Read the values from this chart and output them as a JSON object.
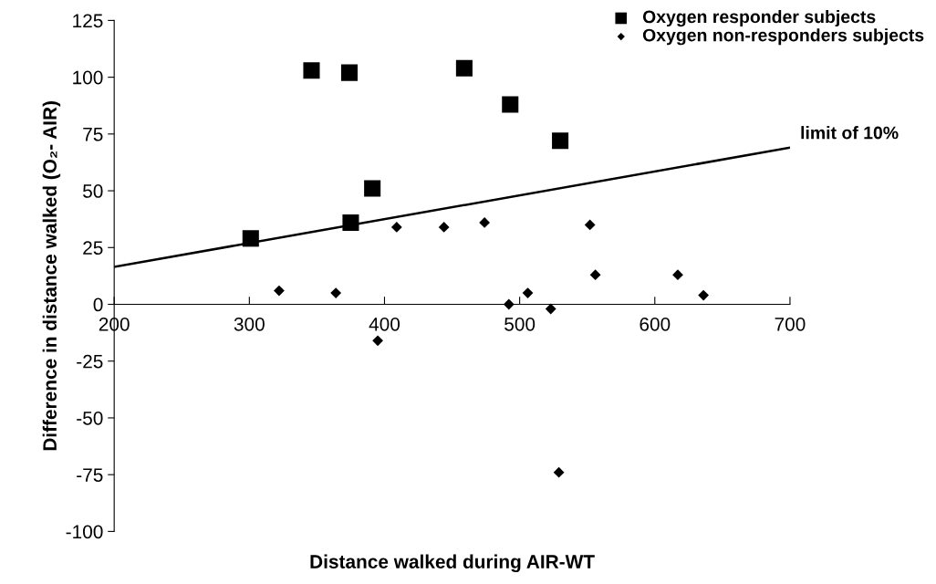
{
  "chart_data": {
    "type": "scatter",
    "xlabel": "Distance walked during AIR-WT",
    "ylabel": "Difference in distance walked (O₂- AIR)",
    "xlim": [
      200,
      700
    ],
    "xticks": [
      200,
      300,
      400,
      500,
      600,
      700
    ],
    "ylim": [
      -100,
      125
    ],
    "yticks": [
      -100,
      -75,
      -50,
      -25,
      0,
      25,
      50,
      75,
      100,
      125
    ],
    "grid": false,
    "legend": "top right",
    "series": [
      {
        "name": "Oxygen responder subjects",
        "color": "#000000",
        "marker": "square",
        "x": [
          301,
          346,
          374,
          375,
          391,
          459,
          493,
          530
        ],
        "values": [
          29,
          103,
          102,
          36,
          51,
          104,
          88,
          72
        ]
      },
      {
        "name": "Oxygen non-responders subjects",
        "color": "#000000",
        "marker": "diamond",
        "x": [
          322,
          364,
          395,
          409,
          444,
          474,
          492,
          506,
          523,
          529,
          552,
          556,
          617,
          636
        ],
        "values": [
          6,
          5,
          -16,
          34,
          34,
          36,
          0,
          5,
          -2,
          -74,
          35,
          13,
          13,
          4
        ]
      },
      {
        "type": "line",
        "color": "#000000",
        "marker": "none",
        "line_style": "solid",
        "x": [
          200,
          700
        ],
        "values": [
          16.5,
          69
        ]
      }
    ],
    "annotations": [
      {
        "text": "limit of 10%",
        "x": 700,
        "y": 69
      }
    ]
  }
}
